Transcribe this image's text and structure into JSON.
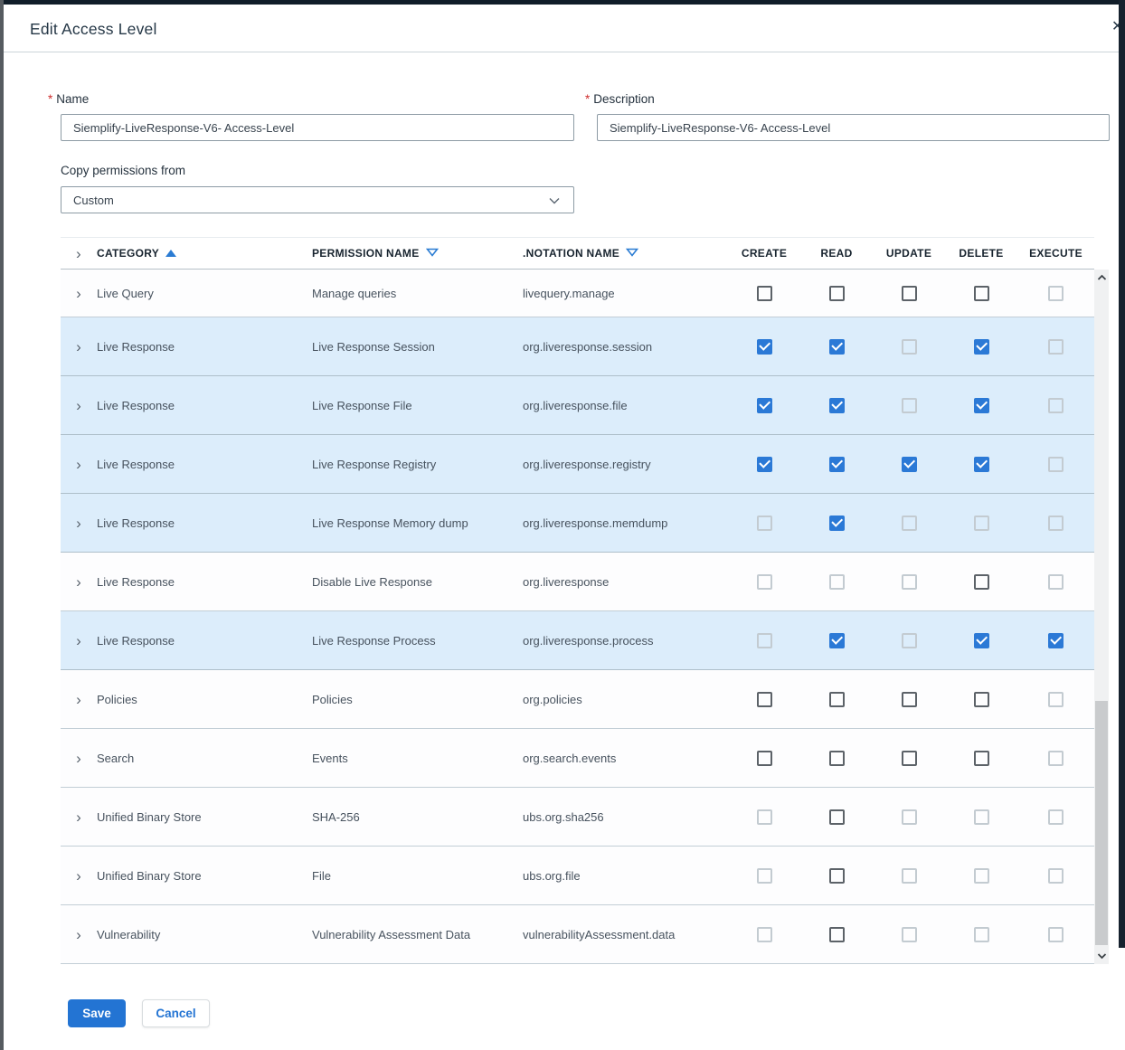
{
  "dialog": {
    "title": "Edit Access Level",
    "close_label": "✕",
    "fields": {
      "name": {
        "label": "Name",
        "required": "*",
        "value": "Siemplify-LiveResponse-V6- Access-Level"
      },
      "description": {
        "label": "Description",
        "required": "*",
        "value": "Siemplify-LiveResponse-V6- Access-Level"
      },
      "copy_permissions": {
        "label": "Copy permissions from",
        "value": "Custom"
      }
    },
    "buttons": {
      "save": "Save",
      "cancel": "Cancel"
    }
  },
  "table": {
    "columns": {
      "category": "CATEGORY",
      "permission": "PERMISSION NAME",
      "notation": ".NOTATION NAME",
      "create": "CREATE",
      "read": "READ",
      "update": "UPDATE",
      "delete": "DELETE",
      "execute": "EXECUTE"
    },
    "sort": {
      "category": "asc",
      "permission": "desc",
      "notation": "desc"
    },
    "rows": [
      {
        "category": "Live Query",
        "permission": "Manage queries",
        "notation": "livequery.manage",
        "highlight": false,
        "create": "unchecked",
        "read": "unchecked",
        "update": "unchecked",
        "delete": "unchecked",
        "execute": "disabled"
      },
      {
        "category": "Live Response",
        "permission": "Live Response Session",
        "notation": "org.liveresponse.session",
        "highlight": true,
        "create": "checked",
        "read": "checked",
        "update": "disabled",
        "delete": "checked",
        "execute": "disabled"
      },
      {
        "category": "Live Response",
        "permission": "Live Response File",
        "notation": "org.liveresponse.file",
        "highlight": true,
        "create": "checked",
        "read": "checked",
        "update": "disabled",
        "delete": "checked",
        "execute": "disabled"
      },
      {
        "category": "Live Response",
        "permission": "Live Response Registry",
        "notation": "org.liveresponse.registry",
        "highlight": true,
        "create": "checked",
        "read": "checked",
        "update": "checked",
        "delete": "checked",
        "execute": "disabled"
      },
      {
        "category": "Live Response",
        "permission": "Live Response Memory dump",
        "notation": "org.liveresponse.memdump",
        "highlight": true,
        "create": "disabled",
        "read": "checked",
        "update": "disabled",
        "delete": "disabled",
        "execute": "disabled"
      },
      {
        "category": "Live Response",
        "permission": "Disable Live Response",
        "notation": "org.liveresponse",
        "highlight": false,
        "create": "disabled",
        "read": "disabled",
        "update": "disabled",
        "delete": "unchecked",
        "execute": "disabled"
      },
      {
        "category": "Live Response",
        "permission": "Live Response Process",
        "notation": "org.liveresponse.process",
        "highlight": true,
        "create": "disabled",
        "read": "checked",
        "update": "disabled",
        "delete": "checked",
        "execute": "checked"
      },
      {
        "category": "Policies",
        "permission": "Policies",
        "notation": "org.policies",
        "highlight": false,
        "create": "unchecked",
        "read": "unchecked",
        "update": "unchecked",
        "delete": "unchecked",
        "execute": "disabled"
      },
      {
        "category": "Search",
        "permission": "Events",
        "notation": "org.search.events",
        "highlight": false,
        "create": "unchecked",
        "read": "unchecked",
        "update": "unchecked",
        "delete": "unchecked",
        "execute": "disabled"
      },
      {
        "category": "Unified Binary Store",
        "permission": "SHA-256",
        "notation": "ubs.org.sha256",
        "highlight": false,
        "create": "disabled",
        "read": "unchecked",
        "update": "disabled",
        "delete": "disabled",
        "execute": "disabled"
      },
      {
        "category": "Unified Binary Store",
        "permission": "File",
        "notation": "ubs.org.file",
        "highlight": false,
        "create": "disabled",
        "read": "unchecked",
        "update": "disabled",
        "delete": "disabled",
        "execute": "disabled"
      },
      {
        "category": "Vulnerability",
        "permission": "Vulnerability Assessment Data",
        "notation": "vulnerabilityAssessment.data",
        "highlight": false,
        "create": "disabled",
        "read": "unchecked",
        "update": "disabled",
        "delete": "disabled",
        "execute": "disabled"
      }
    ]
  },
  "colors": {
    "accent_blue": "#2b79d6",
    "row_highlight": "#dcedfb",
    "save_button": "#2374d3",
    "required_red": "#cf2e2e",
    "dark_edge": "#16222e"
  }
}
